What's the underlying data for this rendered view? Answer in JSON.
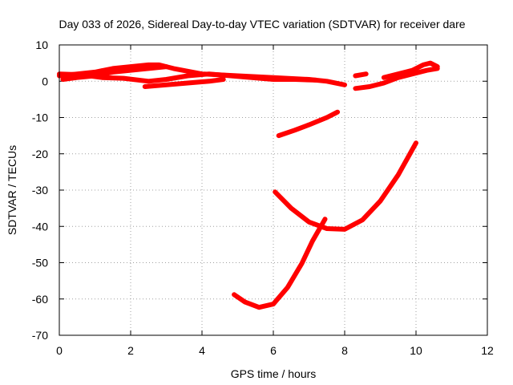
{
  "chart_data": {
    "type": "line",
    "title": "Day 033 of 2026, Sidereal Day-to-day VTEC variation (SDTVAR) for receiver dare",
    "xlabel": "GPS time / hours",
    "ylabel": "SDTVAR / TECUs",
    "xlim": [
      0,
      12
    ],
    "ylim": [
      -70,
      10
    ],
    "xticks": [
      0,
      2,
      4,
      6,
      8,
      10,
      12
    ],
    "yticks": [
      -70,
      -60,
      -50,
      -40,
      -30,
      -20,
      -10,
      0,
      10
    ],
    "grid": true,
    "series_color": "#ff0000",
    "series": [
      {
        "values": [
          [
            0.0,
            1.5
          ],
          [
            0.5,
            2.0
          ],
          [
            1.0,
            2.5
          ],
          [
            1.5,
            3.5
          ],
          [
            2.0,
            4.0
          ],
          [
            2.5,
            4.5
          ],
          [
            2.8,
            4.5
          ],
          [
            3.2,
            3.5
          ],
          [
            4.0,
            2.0
          ],
          [
            5.0,
            1.5
          ],
          [
            6.0,
            1.0
          ],
          [
            7.0,
            0.5
          ],
          [
            7.5,
            0.0
          ],
          [
            8.0,
            -1.0
          ]
        ]
      },
      {
        "values": [
          [
            0.0,
            2.0
          ],
          [
            0.6,
            1.8
          ],
          [
            1.2,
            1.0
          ],
          [
            1.8,
            0.8
          ],
          [
            2.5,
            0.0
          ],
          [
            3.0,
            0.5
          ],
          [
            3.6,
            1.5
          ],
          [
            4.2,
            2.0
          ],
          [
            4.8,
            1.5
          ],
          [
            5.4,
            1.0
          ],
          [
            6.0,
            0.5
          ],
          [
            6.6,
            0.5
          ],
          [
            7.2,
            0.3
          ]
        ]
      },
      {
        "values": [
          [
            0.1,
            0.5
          ],
          [
            0.5,
            1.0
          ],
          [
            1.0,
            1.5
          ],
          [
            1.5,
            2.5
          ],
          [
            2.0,
            3.0
          ],
          [
            2.5,
            3.5
          ],
          [
            3.0,
            4.0
          ]
        ]
      },
      {
        "values": [
          [
            2.4,
            -1.5
          ],
          [
            3.0,
            -1.0
          ],
          [
            3.6,
            -0.5
          ],
          [
            4.2,
            0.0
          ],
          [
            4.6,
            0.5
          ]
        ]
      },
      {
        "values": [
          [
            8.3,
            -2.0
          ],
          [
            8.7,
            -1.5
          ],
          [
            9.1,
            -0.5
          ],
          [
            9.5,
            1.0
          ],
          [
            9.9,
            2.0
          ],
          [
            10.3,
            3.0
          ],
          [
            10.6,
            3.5
          ]
        ]
      },
      {
        "values": [
          [
            8.3,
            1.5
          ],
          [
            8.6,
            2.0
          ]
        ]
      },
      {
        "values": [
          [
            9.1,
            1.0
          ],
          [
            9.5,
            2.0
          ],
          [
            9.9,
            3.0
          ],
          [
            10.2,
            4.5
          ],
          [
            10.4,
            5.0
          ],
          [
            10.6,
            4.0
          ]
        ]
      },
      {
        "values": [
          [
            6.15,
            -15.0
          ],
          [
            6.6,
            -13.5
          ],
          [
            7.0,
            -12.0
          ],
          [
            7.5,
            -10.0
          ],
          [
            7.8,
            -8.5
          ]
        ]
      },
      {
        "values": [
          [
            6.05,
            -30.5
          ],
          [
            6.5,
            -35.0
          ],
          [
            7.0,
            -38.8
          ],
          [
            7.5,
            -40.6
          ],
          [
            8.0,
            -40.8
          ],
          [
            8.5,
            -38.2
          ],
          [
            9.0,
            -33.0
          ],
          [
            9.5,
            -25.8
          ],
          [
            10.0,
            -17.0
          ]
        ]
      },
      {
        "values": [
          [
            4.9,
            -58.8
          ],
          [
            5.2,
            -60.8
          ],
          [
            5.6,
            -62.3
          ],
          [
            6.0,
            -61.4
          ],
          [
            6.4,
            -56.8
          ],
          [
            6.8,
            -50.2
          ],
          [
            7.1,
            -44.0
          ],
          [
            7.45,
            -38.0
          ]
        ]
      }
    ]
  }
}
